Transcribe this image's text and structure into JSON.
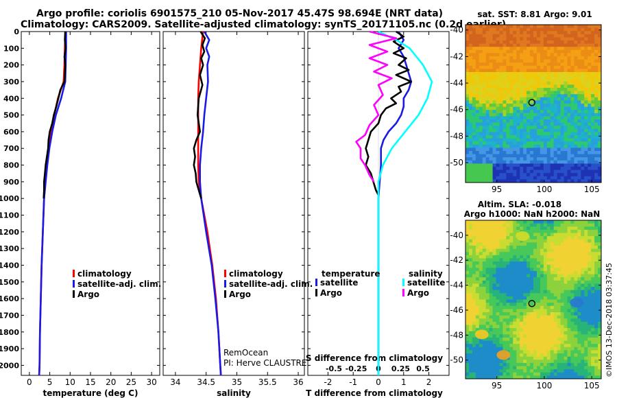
{
  "title_line1": "Argo profile: coriolis 6901575_210 05-Nov-2017 45.47S 98.694E (NRT data)",
  "title_line2": "Climatology: CARS2009. Satellite-adjusted climatology: synTS_20171105.nc (0.2d earlier)",
  "colors": {
    "climatology": "#ff0000",
    "satellite": "#1a1ae6",
    "argo": "#000000",
    "satellite_s": "#00ffff",
    "argo_s": "#ff00ff"
  },
  "chart_data": [
    {
      "type": "line",
      "name": "temperature",
      "xlabel": "temperature (deg C)",
      "ylabel": "",
      "xlim": [
        -2,
        32
      ],
      "ylim": [
        2060,
        0
      ],
      "xticks": [
        0,
        5,
        10,
        15,
        20,
        25,
        30
      ],
      "xtick_labels": [
        "0",
        "5",
        "10",
        "15",
        "20",
        "25",
        "30"
      ],
      "yticks": [
        0,
        100,
        200,
        300,
        400,
        500,
        600,
        700,
        800,
        900,
        1000,
        1100,
        1200,
        1300,
        1400,
        1500,
        1600,
        1700,
        1800,
        1900,
        2000
      ],
      "ytick_labels": [
        "0",
        "100",
        "200",
        "300",
        "400",
        "500",
        "600",
        "700",
        "800",
        "900",
        "1000",
        "1100",
        "1200",
        "1300",
        "1400",
        "1500",
        "1600",
        "1700",
        "1800",
        "1900",
        "2000"
      ],
      "legend": [
        "climatology",
        "satellite-adj. clim.",
        "Argo"
      ],
      "legend_position": "lower-right",
      "series": [
        {
          "name": "climatology",
          "color": "#ff0000",
          "depth": [
            0,
            100,
            200,
            300,
            400,
            500,
            600,
            700,
            800,
            900,
            1000,
            1200,
            1400,
            1600,
            1800,
            2000,
            2060
          ],
          "values": [
            8.8,
            8.7,
            8.6,
            8.4,
            7.0,
            6.1,
            5.3,
            4.8,
            4.3,
            3.9,
            3.6,
            3.3,
            3.0,
            2.8,
            2.6,
            2.5,
            2.4
          ]
        },
        {
          "name": "satellite-adj. clim.",
          "color": "#1a1ae6",
          "depth": [
            0,
            100,
            200,
            300,
            400,
            500,
            600,
            700,
            800,
            900,
            1000,
            1200,
            1400,
            1600,
            1800,
            2000,
            2060
          ],
          "values": [
            9.0,
            9.0,
            8.9,
            8.8,
            7.8,
            6.5,
            5.6,
            4.9,
            4.4,
            4.0,
            3.6,
            3.3,
            3.0,
            2.8,
            2.6,
            2.5,
            2.4
          ]
        },
        {
          "name": "Argo",
          "color": "#000000",
          "depth": [
            0,
            50,
            100,
            150,
            200,
            250,
            300,
            350,
            400,
            450,
            500,
            550,
            600,
            650,
            700,
            750,
            800,
            850,
            900,
            950,
            1000
          ],
          "values": [
            8.8,
            8.7,
            8.9,
            8.6,
            8.8,
            8.7,
            8.6,
            7.6,
            7.1,
            6.6,
            6.0,
            5.6,
            5.0,
            4.7,
            4.6,
            4.3,
            4.0,
            3.8,
            3.6,
            3.6,
            3.5
          ]
        }
      ]
    },
    {
      "type": "line",
      "name": "salinity",
      "xlabel": "salinity",
      "ylabel": "",
      "xlim": [
        33.8,
        36.1
      ],
      "ylim": [
        2060,
        0
      ],
      "xticks": [
        34,
        34.5,
        35,
        35.5,
        36
      ],
      "xtick_labels": [
        "34",
        "34.5",
        "35",
        "35.5",
        "36"
      ],
      "legend": [
        "climatology",
        "satellite-adj. clim.",
        "Argo"
      ],
      "legend_position": "lower-right",
      "annotation": [
        "RemOcean",
        "PI: Herve CLAUSTRE"
      ],
      "series": [
        {
          "name": "climatology",
          "color": "#ff0000",
          "depth": [
            0,
            100,
            200,
            300,
            400,
            500,
            600,
            700,
            800,
            900,
            1000,
            1200,
            1400,
            1600,
            1800,
            2000,
            2060
          ],
          "values": [
            34.45,
            34.42,
            34.4,
            34.38,
            34.37,
            34.37,
            34.37,
            34.37,
            34.37,
            34.38,
            34.42,
            34.52,
            34.6,
            34.66,
            34.7,
            34.73,
            34.74
          ]
        },
        {
          "name": "satellite-adj. clim.",
          "color": "#1a1ae6",
          "depth": [
            0,
            50,
            100,
            150,
            200,
            300,
            400,
            500,
            600,
            700,
            800,
            900,
            1000,
            1200,
            1400,
            1600,
            1800,
            2000,
            2060
          ],
          "values": [
            34.47,
            34.55,
            34.5,
            34.55,
            34.52,
            34.53,
            34.5,
            34.47,
            34.45,
            34.42,
            34.4,
            34.4,
            34.42,
            34.5,
            34.59,
            34.65,
            34.7,
            34.73,
            34.74
          ]
        },
        {
          "name": "Argo",
          "color": "#000000",
          "depth": [
            0,
            40,
            80,
            120,
            160,
            200,
            260,
            320,
            400,
            500,
            600,
            650,
            700,
            750,
            800,
            850,
            900,
            950,
            1000
          ],
          "values": [
            34.41,
            34.48,
            34.44,
            34.47,
            34.42,
            34.45,
            34.4,
            34.44,
            34.38,
            34.36,
            34.4,
            34.34,
            34.3,
            34.32,
            34.3,
            34.33,
            34.34,
            34.38,
            34.42
          ]
        }
      ]
    },
    {
      "type": "line",
      "name": "difference",
      "xlabel": "T difference from climatology",
      "xlabel_top": "S difference from climatology",
      "xlim": [
        -2.8,
        2.8
      ],
      "ylim": [
        2060,
        0
      ],
      "xticks": [
        -2,
        -1,
        0,
        1,
        2
      ],
      "xtick_labels": [
        "-2",
        "-1",
        "0",
        "1",
        "2"
      ],
      "s_xticks": [
        -0.5,
        -0.25,
        0,
        0.25,
        0.5
      ],
      "s_xtick_labels": [
        "-0.5",
        "-0.25",
        "0",
        "0.25",
        "0.5"
      ],
      "legend_left_title": "temperature",
      "legend_right_title": "salinity",
      "legend_left": [
        "satellite",
        "Argo"
      ],
      "legend_right": [
        "satellite",
        "Argo"
      ],
      "series": [
        {
          "name": "temperature satellite",
          "color": "#1a1ae6",
          "depth": [
            0,
            50,
            100,
            150,
            200,
            250,
            300,
            350,
            400,
            450,
            500,
            550,
            600,
            650,
            700,
            750,
            800,
            900,
            1000,
            1200,
            1400,
            1600,
            1800,
            2000,
            2060
          ],
          "values": [
            0.8,
            1.0,
            0.8,
            1.0,
            1.1,
            1.2,
            1.3,
            1.2,
            1.0,
            1.0,
            0.9,
            0.7,
            0.4,
            0.2,
            0.1,
            0.1,
            0.1,
            0.05,
            0.0,
            0.0,
            0.0,
            0.0,
            0.0,
            0.0,
            0.0
          ]
        },
        {
          "name": "temperature Argo",
          "color": "#000000",
          "depth": [
            0,
            30,
            60,
            100,
            130,
            160,
            200,
            230,
            260,
            300,
            330,
            360,
            400,
            430,
            460,
            500,
            550,
            600,
            650,
            700,
            750,
            800,
            850,
            900,
            950,
            980
          ],
          "values": [
            0.7,
            1.0,
            0.6,
            1.0,
            0.6,
            1.1,
            0.8,
            1.2,
            0.7,
            1.3,
            0.8,
            0.9,
            0.5,
            0.7,
            0.3,
            0.1,
            0.0,
            -0.3,
            -0.4,
            -0.5,
            -0.4,
            -0.5,
            -0.3,
            -0.2,
            -0.1,
            0.0
          ]
        },
        {
          "name": "salinity satellite",
          "color": "#00ffff",
          "depth": [
            0,
            50,
            100,
            200,
            300,
            400,
            500,
            600,
            700,
            800,
            900,
            1000,
            1300,
            1500,
            1700,
            2000,
            2060
          ],
          "values": [
            0.0,
            0.2,
            0.35,
            0.5,
            0.6,
            0.55,
            0.45,
            0.3,
            0.15,
            0.05,
            0.0,
            0.0,
            0.0,
            0.0,
            0.0,
            0.0,
            0.0
          ]
        },
        {
          "name": "salinity Argo",
          "color": "#ff00ff",
          "depth": [
            0,
            40,
            80,
            120,
            160,
            200,
            240,
            280,
            320,
            380,
            440,
            500,
            560,
            620,
            660,
            700,
            760,
            800,
            860,
            900
          ],
          "values": [
            -0.1,
            0.2,
            -0.1,
            0.1,
            -0.1,
            0.1,
            -0.05,
            0.15,
            0.0,
            0.05,
            -0.05,
            0.0,
            -0.1,
            -0.15,
            -0.25,
            -0.2,
            -0.2,
            -0.15,
            -0.1,
            -0.05
          ]
        }
      ]
    },
    {
      "type": "heatmap",
      "name": "satellite SST map",
      "title": "sat. SST: 8.81  Argo: 9.01",
      "xlim": [
        91.7,
        106
      ],
      "ylim": [
        -51.5,
        -39.6
      ],
      "xticks": [
        95,
        100,
        105
      ],
      "xtick_labels": [
        "95",
        "100",
        "105"
      ],
      "yticks": [
        -40,
        -42,
        -44,
        -46,
        -48,
        -50
      ],
      "ytick_labels": [
        "-40",
        "-42",
        "-44",
        "-46",
        "-48",
        "-50"
      ],
      "marker": {
        "lon": 98.694,
        "lat": -45.47
      }
    },
    {
      "type": "heatmap",
      "name": "altimetry SLA map",
      "title_line1": "Altim. SLA: -0.018",
      "title_line2": "Argo h1000: NaN h2000: NaN",
      "xlim": [
        91.7,
        106
      ],
      "ylim": [
        -51.5,
        -38.8
      ],
      "xticks": [
        95,
        100,
        105
      ],
      "xtick_labels": [
        "95",
        "100",
        "105"
      ],
      "yticks": [
        -40,
        -42,
        -44,
        -46,
        -48,
        -50
      ],
      "ytick_labels": [
        "-40",
        "-42",
        "-44",
        "-46",
        "-48",
        "-50"
      ],
      "marker": {
        "lon": 98.694,
        "lat": -45.47
      }
    }
  ],
  "credit": "©IMOS 13-Dec-2018 03:37:45"
}
